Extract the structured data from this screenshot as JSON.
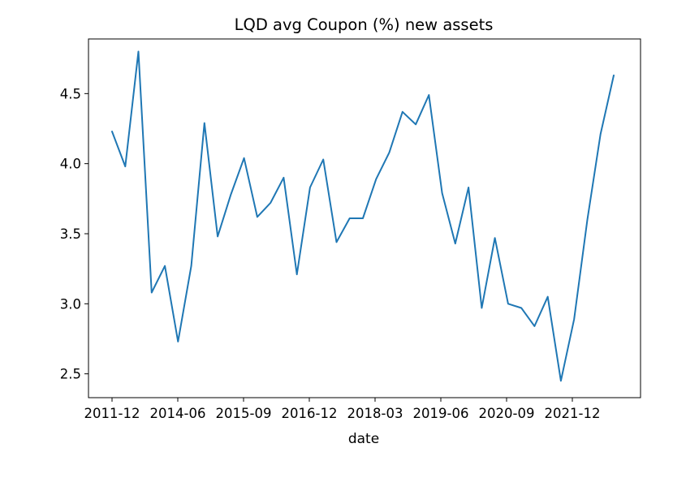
{
  "chart_data": {
    "type": "line",
    "title": "LQD avg Coupon (%) new assets",
    "xlabel": "date",
    "ylabel": "",
    "x_tick_labels": [
      "2011-12",
      "2014-06",
      "2015-09",
      "2016-12",
      "2018-03",
      "2019-06",
      "2020-09",
      "2021-12"
    ],
    "y_ticks": [
      2.5,
      3.0,
      3.5,
      4.0,
      4.5
    ],
    "y_tick_labels": [
      "2.5",
      "3.0",
      "3.5",
      "4.0",
      "4.5"
    ],
    "ylim": [
      2.33,
      4.89
    ],
    "grid": false,
    "legend": "none",
    "series": [
      {
        "color": "#1f77b4",
        "values": [
          4.23,
          3.98,
          4.8,
          3.08,
          3.27,
          2.73,
          3.27,
          4.29,
          3.48,
          3.78,
          4.04,
          3.62,
          3.72,
          3.9,
          3.21,
          3.83,
          4.03,
          3.44,
          3.61,
          3.61,
          3.89,
          4.08,
          4.37,
          4.28,
          4.49,
          3.79,
          3.43,
          3.83,
          2.97,
          3.47,
          3.0,
          2.97,
          2.84,
          3.05,
          2.45,
          2.89,
          3.6,
          4.21,
          4.63
        ]
      }
    ]
  }
}
